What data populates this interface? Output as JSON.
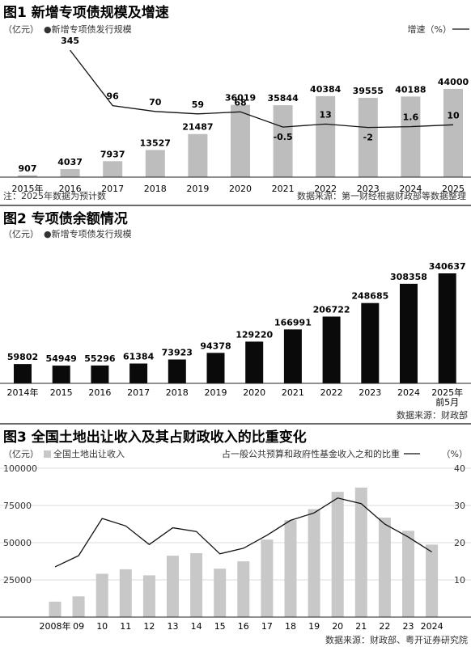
{
  "chart_data": [
    {
      "type": "bar",
      "title": "图1 新增专项债规模及增速",
      "unit_left": "（亿元）",
      "legend_label": "●新增专项债发行规模",
      "unit_right": "增速（%）",
      "categories": [
        "2015年",
        "2016",
        "2017",
        "2018",
        "2019",
        "2020",
        "2021",
        "2022",
        "2023",
        "2024",
        "2025"
      ],
      "series": [
        {
          "values": [
            907,
            4037,
            7937,
            13527,
            21487,
            36019,
            35844,
            40384,
            39555,
            40188,
            44000
          ]
        },
        {
          "values": [
            null,
            345,
            96,
            70,
            59,
            68,
            -0.5,
            13,
            -2,
            1.6,
            10
          ]
        }
      ],
      "growth_labels": [
        "",
        "345",
        "96",
        "70",
        "59",
        "68",
        "-0.5",
        "13",
        "-2",
        "1.6",
        "10"
      ],
      "note": "注：2025年数据为预计数",
      "source": "数据来源：第一财经根据财政部等数据整理",
      "grid": false
    },
    {
      "type": "bar",
      "title": "图2 专项债余额情况",
      "unit_left": "（亿元）",
      "legend_label": "●新增专项债发行规模",
      "categories": [
        "2014年",
        "2015",
        "2016",
        "2017",
        "2018",
        "2019",
        "2020",
        "2021",
        "2022",
        "2023",
        "2024",
        "2025年"
      ],
      "category_sublabel": "前5月",
      "series": [
        {
          "values": [
            59802,
            54949,
            55296,
            61384,
            73923,
            94378,
            129220,
            166991,
            206722,
            248685,
            308358,
            340637
          ]
        }
      ],
      "source": "数据来源：财政部",
      "grid": false
    },
    {
      "type": "bar",
      "title": "图3 全国土地出让收入及其占财政收入的比重变化",
      "unit_left": "（亿元）",
      "legend_left": "全国土地出让收入",
      "legend_right": "占一般公共预算和政府性基金收入之和的比重",
      "unit_right": "（%）",
      "categories": [
        "2008年",
        "09",
        "10",
        "11",
        "12",
        "13",
        "14",
        "15",
        "16",
        "17",
        "18",
        "19",
        "20",
        "21",
        "22",
        "23",
        "2024"
      ],
      "y_ticks": [
        "100000",
        "75000",
        "50000",
        "25000"
      ],
      "y2_ticks": [
        "40",
        "30",
        "20",
        "10"
      ],
      "ylim": [
        0,
        100000
      ],
      "y2lim": [
        0,
        40
      ],
      "series": [
        {
          "values": [
            10375,
            13965,
            29110,
            32126,
            28042,
            41250,
            42940,
            32547,
            37457,
            52059,
            65096,
            72517,
            84142,
            87051,
            66854,
            57996,
            48699
          ]
        },
        {
          "values": [
            13.5,
            16.5,
            26.5,
            24.5,
            19.5,
            24,
            23,
            17,
            18.5,
            22,
            26,
            28,
            32,
            30.5,
            25,
            21.5,
            17.5
          ]
        }
      ],
      "source": "数据来源：财政部、粤开证券研究院",
      "grid": true
    }
  ]
}
